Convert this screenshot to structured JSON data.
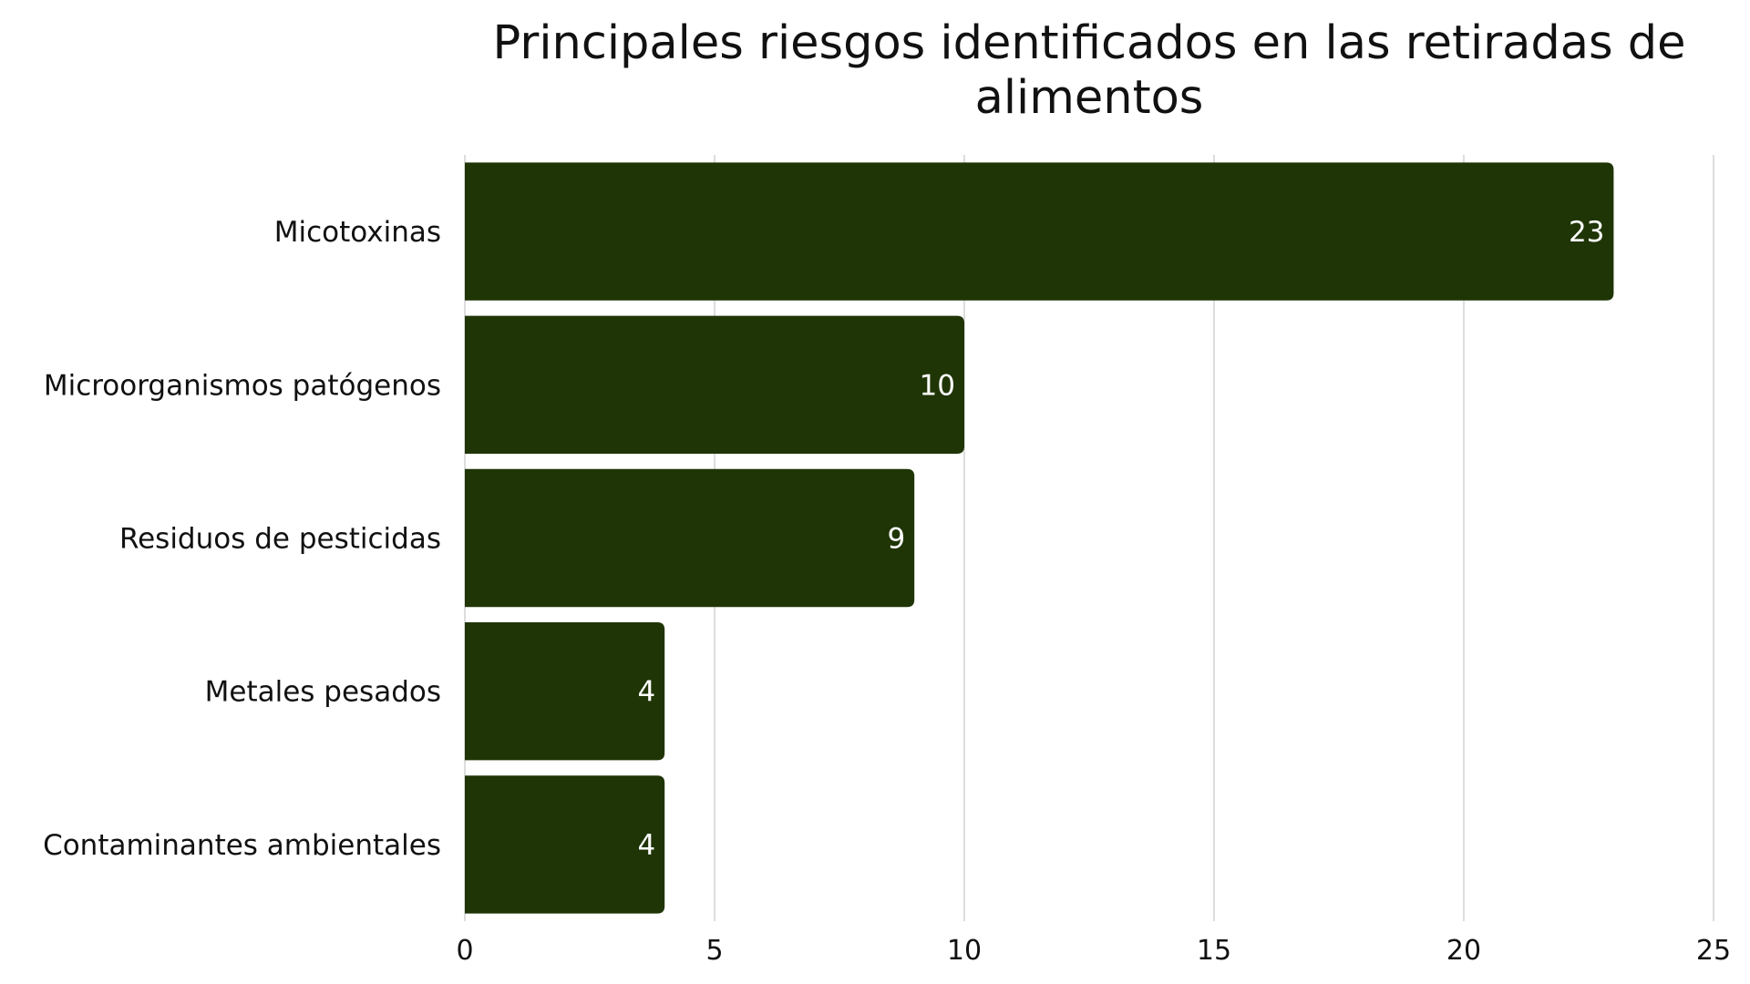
{
  "chart_data": {
    "type": "bar",
    "orientation": "horizontal",
    "title": "Principales riesgos identificados en las retiradas de alimentos",
    "title_lines": [
      "Principales riesgos identificados en las retiradas de",
      "alimentos"
    ],
    "categories": [
      "Micotoxinas",
      "Microorganismos patógenos",
      "Residuos de pesticidas",
      "Metales pesados",
      "Contaminantes ambientales"
    ],
    "values": [
      23,
      10,
      9,
      4,
      4
    ],
    "x_ticks": [
      "0",
      "5",
      "10",
      "15",
      "20",
      "25"
    ],
    "xlim": [
      0,
      25
    ],
    "grid": "vertical",
    "bar_color": "#1f3506",
    "value_label_color": "#ffffff",
    "data_labels": true
  }
}
